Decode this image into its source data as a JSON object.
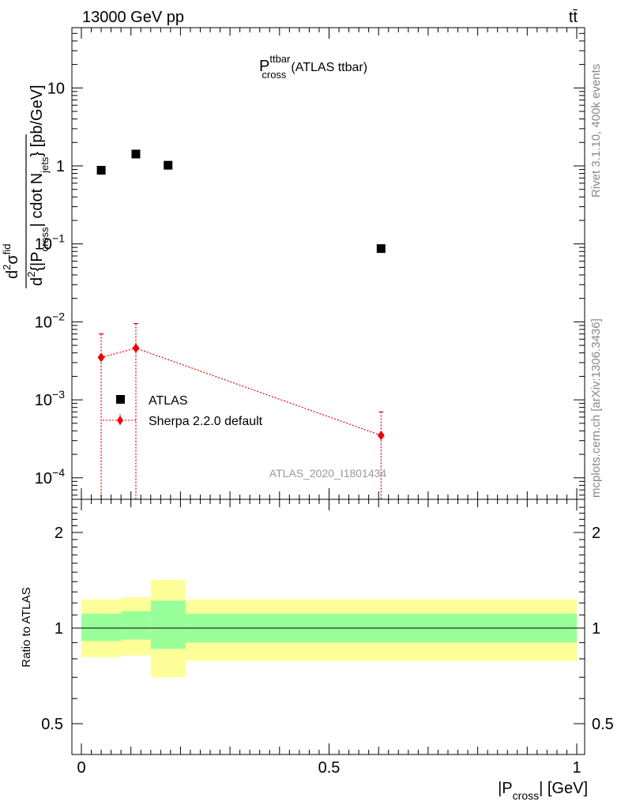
{
  "header": {
    "energy_label": "13000 GeV pp",
    "process_label": "tt̄"
  },
  "side_labels": {
    "rivet": "Rivet 3.1.10,  400k events",
    "mcplots": "mcplots.cern.ch [arXiv:1306.3436]"
  },
  "watermark": "ATLAS_2020_I1801434",
  "chart_data": [
    {
      "type": "scatter",
      "title": {
        "main": "P",
        "sup": "ttbar",
        "sub": "cross",
        "suffix": "(ATLAS ttbar)"
      },
      "ylabel": "d²σ^{fid} / d²{|P_cross| cdot N_jets} [pb/GeV]",
      "ylabel_parts": {
        "num_d": "d",
        "num_sup": "2",
        "num_sigma": "σ",
        "num_sigma_sup": "fid",
        "den_d": "d",
        "den_sup": "2",
        "den_open": "{|P",
        "den_sub": "cross",
        "den_mid": "| cdot N",
        "den_sub2": "jets",
        "den_close": "} [pb/GeV]"
      },
      "yscale": "log",
      "ylim": [
        5e-05,
        70
      ],
      "xlim": [
        -0.02,
        1.02
      ],
      "yticks": [
        {
          "value": 0.0001,
          "base": "10",
          "exp": "−4"
        },
        {
          "value": 0.001,
          "base": "10",
          "exp": "−3"
        },
        {
          "value": 0.01,
          "base": "10",
          "exp": "−2"
        },
        {
          "value": 0.1,
          "base": "10",
          "exp": "−1"
        },
        {
          "value": 1,
          "base": "1",
          "exp": ""
        },
        {
          "value": 10,
          "base": "10",
          "exp": ""
        }
      ],
      "legend_placement": "bottom-left",
      "series": [
        {
          "name": "ATLAS",
          "marker": "square",
          "color": "#000000",
          "points": [
            {
              "x": 0.04,
              "y": 0.88,
              "xlo": 0.0,
              "xhi": 0.08
            },
            {
              "x": 0.11,
              "y": 1.42,
              "xlo": 0.08,
              "xhi": 0.14
            },
            {
              "x": 0.175,
              "y": 1.02,
              "xlo": 0.14,
              "xhi": 0.21
            },
            {
              "x": 0.605,
              "y": 0.087,
              "xlo": 0.21,
              "xhi": 1.0
            }
          ]
        },
        {
          "name": "Sherpa 2.2.0 default",
          "marker": "diamond",
          "color": "#ee0000",
          "points": [
            {
              "x": 0.04,
              "y": 0.0035,
              "ylo": 5e-05,
              "yhi": 0.007
            },
            {
              "x": 0.11,
              "y": 0.0046,
              "ylo": 5e-05,
              "yhi": 0.0095
            },
            {
              "x": 0.605,
              "y": 0.00035,
              "ylo": 5e-05,
              "yhi": 0.0007
            }
          ]
        }
      ]
    },
    {
      "type": "area",
      "ylabel": "Ratio to ATLAS",
      "xlabel": "|P_cross| [GeV]",
      "xlabel_parts": {
        "pre": "|P",
        "sub": "cross",
        "post": "| [GeV]"
      },
      "ylim": [
        0.35,
        2.4
      ],
      "yscale": "log",
      "yticks": [
        {
          "value": 0.5,
          "label": "0.5"
        },
        {
          "value": 1,
          "label": "1"
        },
        {
          "value": 2,
          "label": "2"
        }
      ],
      "xticks": [
        {
          "value": 0,
          "label": "0"
        },
        {
          "value": 0.5,
          "label": "0.5"
        },
        {
          "value": 1,
          "label": "1"
        }
      ],
      "reference_line": 1,
      "bands": [
        {
          "xlo": 0.0,
          "xhi": 0.08,
          "yellow": [
            0.81,
            1.23
          ],
          "green": [
            0.91,
            1.11
          ]
        },
        {
          "xlo": 0.08,
          "xhi": 0.14,
          "yellow": [
            0.82,
            1.25
          ],
          "green": [
            0.92,
            1.13
          ]
        },
        {
          "xlo": 0.14,
          "xhi": 0.21,
          "yellow": [
            0.7,
            1.42
          ],
          "green": [
            0.86,
            1.22
          ]
        },
        {
          "xlo": 0.21,
          "xhi": 1.0,
          "yellow": [
            0.79,
            1.23
          ],
          "green": [
            0.9,
            1.11
          ]
        }
      ],
      "band_colors": {
        "yellow": "#ffff99",
        "green": "#99ff99"
      }
    }
  ]
}
